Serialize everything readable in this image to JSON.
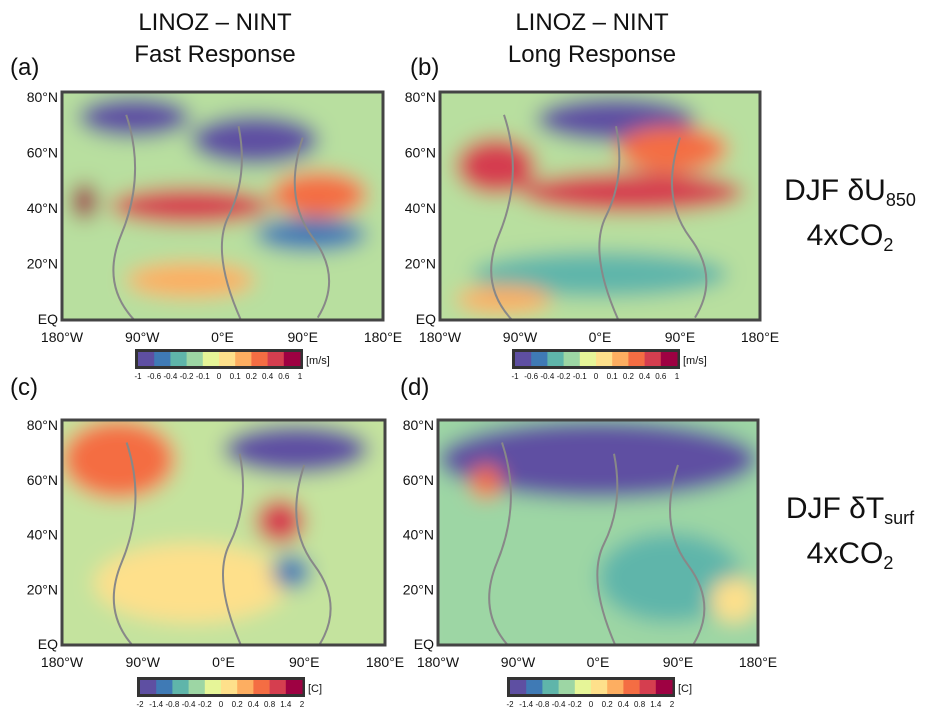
{
  "columns": [
    {
      "line1": "LINOZ – NINT",
      "line2": "Fast Response"
    },
    {
      "line1": "LINOZ – NINT",
      "line2": "Long Response"
    }
  ],
  "rows": [
    {
      "main": "DJF δU",
      "sub": "850",
      "line2": "4xCO",
      "line2_sub": "2"
    },
    {
      "main": "DJF δT",
      "sub": "surf",
      "line2": "4xCO",
      "line2_sub": "2"
    }
  ],
  "panels": [
    {
      "label": "(a)",
      "lat_labels": [
        "80°N",
        "60°N",
        "40°N",
        "20°N",
        "EQ"
      ],
      "lon_labels": [
        "180°W",
        "90°W",
        "0°E",
        "90°E",
        "180°E"
      ],
      "colorbar_ticks": [
        "-1",
        "-0.6",
        "-0.4",
        "-0.2",
        "-0.1",
        "0",
        "0.1",
        "0.2",
        "0.4",
        "0.6",
        "1"
      ],
      "unit": "[m/s]"
    },
    {
      "label": "(b)",
      "lat_labels": [
        "80°N",
        "60°N",
        "40°N",
        "20°N",
        "EQ"
      ],
      "lon_labels": [
        "180°W",
        "90°W",
        "0°E",
        "90°E",
        "180°E"
      ],
      "colorbar_ticks": [
        "-1",
        "-0.6",
        "-0.4",
        "-0.2",
        "-0.1",
        "0",
        "0.1",
        "0.2",
        "0.4",
        "0.6",
        "1"
      ],
      "unit": "[m/s]"
    },
    {
      "label": "(c)",
      "lat_labels": [
        "80°N",
        "60°N",
        "40°N",
        "20°N",
        "EQ"
      ],
      "lon_labels": [
        "180°W",
        "90°W",
        "0°E",
        "90°E",
        "180°E"
      ],
      "colorbar_ticks": [
        "-2",
        "-1.4",
        "-0.8",
        "-0.4",
        "-0.2",
        "0",
        "0.2",
        "0.4",
        "0.8",
        "1.4",
        "2"
      ],
      "unit": "[C]"
    },
    {
      "label": "(d)",
      "lat_labels": [
        "80°N",
        "60°N",
        "40°N",
        "20°N",
        "EQ"
      ],
      "lon_labels": [
        "180°W",
        "90°W",
        "0°E",
        "90°E",
        "180°E"
      ],
      "colorbar_ticks": [
        "-2",
        "-1.4",
        "-0.8",
        "-0.4",
        "-0.2",
        "0",
        "0.2",
        "0.4",
        "0.8",
        "1.4",
        "2"
      ],
      "unit": "[C]"
    }
  ]
}
